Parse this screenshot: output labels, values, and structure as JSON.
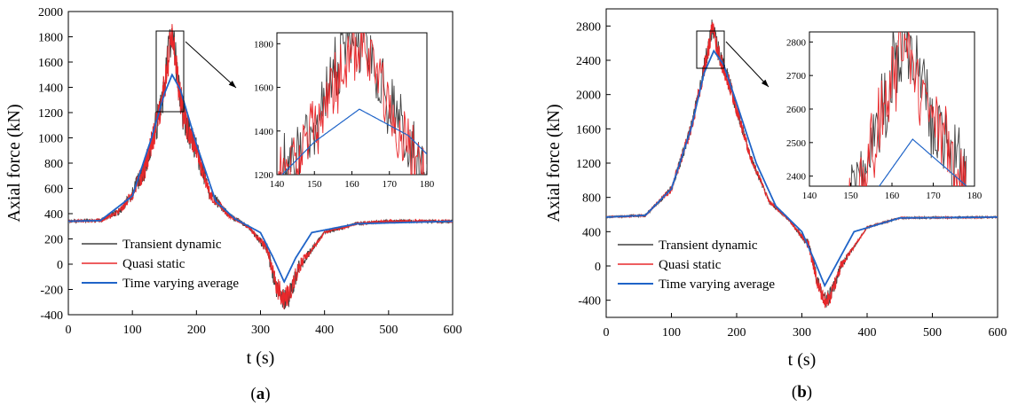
{
  "chart_data": [
    {
      "type": "line",
      "panel_label": "a",
      "caption_prefix": "(",
      "caption_suffix": ")",
      "xlabel": "t (s)",
      "ylabel": "Axial force (kN)",
      "xlim": [
        0,
        600
      ],
      "ylim": [
        -400,
        2000
      ],
      "xticks": [
        0,
        100,
        200,
        300,
        400,
        500,
        600
      ],
      "yticks": [
        -400,
        -200,
        0,
        200,
        400,
        600,
        800,
        1000,
        1200,
        1400,
        1600,
        1800,
        2000
      ],
      "baseline": 340,
      "peak_t": 160,
      "peak_width": 40,
      "peak_avg": 1500,
      "valley_t": 337,
      "valley_width": 22,
      "valley_avg": -140,
      "noise_amp": 150,
      "valley_noise": 80,
      "colors": {
        "transient": "#404040",
        "quasi": "#e8282b",
        "average": "#1f64c8"
      },
      "series": [
        {
          "name": "Transient dynamic",
          "key": "transient",
          "color": "#404040",
          "points": [
            [
              0,
              340
            ],
            [
              50,
              345
            ],
            [
              80,
              420
            ],
            [
              100,
              560
            ],
            [
              120,
              760
            ],
            [
              140,
              1150
            ],
            [
              150,
              1400
            ],
            [
              158,
              1760
            ],
            [
              163,
              1800
            ],
            [
              170,
              1520
            ],
            [
              180,
              1150
            ],
            [
              200,
              900
            ],
            [
              220,
              560
            ],
            [
              250,
              390
            ],
            [
              280,
              300
            ],
            [
              310,
              120
            ],
            [
              325,
              -200
            ],
            [
              337,
              -295
            ],
            [
              345,
              -250
            ],
            [
              360,
              -20
            ],
            [
              400,
              250
            ],
            [
              450,
              320
            ],
            [
              500,
              340
            ],
            [
              600,
              340
            ]
          ]
        },
        {
          "name": "Quasi static",
          "key": "quasi",
          "color": "#e8282b",
          "points": [
            [
              0,
              340
            ],
            [
              50,
              345
            ],
            [
              80,
              420
            ],
            [
              100,
              560
            ],
            [
              120,
              760
            ],
            [
              140,
              1150
            ],
            [
              150,
              1400
            ],
            [
              158,
              1700
            ],
            [
              163,
              1790
            ],
            [
              170,
              1500
            ],
            [
              180,
              1150
            ],
            [
              200,
              900
            ],
            [
              220,
              560
            ],
            [
              250,
              390
            ],
            [
              280,
              300
            ],
            [
              310,
              120
            ],
            [
              325,
              -180
            ],
            [
              337,
              -270
            ],
            [
              345,
              -230
            ],
            [
              360,
              -20
            ],
            [
              400,
              250
            ],
            [
              450,
              320
            ],
            [
              500,
              340
            ],
            [
              600,
              340
            ]
          ]
        },
        {
          "name": "Time varying average",
          "key": "average",
          "color": "#1f64c8",
          "points": [
            [
              0,
              340
            ],
            [
              50,
              345
            ],
            [
              100,
              540
            ],
            [
              130,
              1000
            ],
            [
              150,
              1350
            ],
            [
              162,
              1500
            ],
            [
              175,
              1380
            ],
            [
              200,
              950
            ],
            [
              230,
              500
            ],
            [
              260,
              360
            ],
            [
              300,
              250
            ],
            [
              320,
              50
            ],
            [
              337,
              -140
            ],
            [
              355,
              50
            ],
            [
              380,
              250
            ],
            [
              450,
              320
            ],
            [
              600,
              340
            ]
          ]
        }
      ],
      "inset": {
        "xlim": [
          140,
          180
        ],
        "ylim": [
          1200,
          1850
        ],
        "xticks": [
          140,
          150,
          160,
          170,
          180
        ],
        "yticks": [
          1200,
          1400,
          1600,
          1800
        ],
        "zoom_xlim": [
          140,
          180
        ],
        "zoom_ylim": [
          1200,
          1850
        ]
      }
    },
    {
      "type": "line",
      "panel_label": "b",
      "caption_prefix": "(",
      "caption_suffix": ")",
      "xlabel": "t (s)",
      "ylabel": "Axial force (kN)",
      "xlim": [
        0,
        600
      ],
      "ylim": [
        -600,
        3000
      ],
      "xticks": [
        0,
        100,
        200,
        300,
        400,
        500,
        600
      ],
      "yticks": [
        -400,
        0,
        400,
        800,
        1200,
        1600,
        2000,
        2400,
        2800
      ],
      "baseline": 570,
      "peak_t": 165,
      "peak_width": 42,
      "peak_avg": 2510,
      "valley_t": 335,
      "valley_width": 22,
      "valley_avg": -230,
      "noise_amp": 120,
      "valley_noise": 90,
      "colors": {
        "transient": "#404040",
        "quasi": "#e8282b",
        "average": "#1f64c8"
      },
      "series": [
        {
          "name": "Transient dynamic",
          "key": "transient",
          "color": "#404040",
          "points": [
            [
              0,
              570
            ],
            [
              60,
              590
            ],
            [
              100,
              900
            ],
            [
              130,
              1600
            ],
            [
              150,
              2300
            ],
            [
              158,
              2600
            ],
            [
              163,
              2820
            ],
            [
              170,
              2550
            ],
            [
              190,
              2100
            ],
            [
              220,
              1300
            ],
            [
              250,
              750
            ],
            [
              280,
              540
            ],
            [
              310,
              250
            ],
            [
              325,
              -200
            ],
            [
              337,
              -400
            ],
            [
              345,
              -320
            ],
            [
              360,
              0
            ],
            [
              400,
              450
            ],
            [
              450,
              560
            ],
            [
              600,
              570
            ]
          ]
        },
        {
          "name": "Quasi static",
          "key": "quasi",
          "color": "#e8282b",
          "points": [
            [
              0,
              570
            ],
            [
              60,
              590
            ],
            [
              100,
              900
            ],
            [
              130,
              1600
            ],
            [
              150,
              2300
            ],
            [
              158,
              2580
            ],
            [
              163,
              2800
            ],
            [
              170,
              2530
            ],
            [
              190,
              2100
            ],
            [
              220,
              1300
            ],
            [
              250,
              750
            ],
            [
              280,
              540
            ],
            [
              310,
              250
            ],
            [
              325,
              -220
            ],
            [
              337,
              -420
            ],
            [
              345,
              -330
            ],
            [
              360,
              0
            ],
            [
              400,
              450
            ],
            [
              450,
              560
            ],
            [
              600,
              570
            ]
          ]
        },
        {
          "name": "Time varying average",
          "key": "average",
          "color": "#1f64c8",
          "points": [
            [
              0,
              570
            ],
            [
              60,
              590
            ],
            [
              100,
              900
            ],
            [
              130,
              1600
            ],
            [
              150,
              2250
            ],
            [
              165,
              2510
            ],
            [
              180,
              2350
            ],
            [
              200,
              1900
            ],
            [
              230,
              1200
            ],
            [
              260,
              700
            ],
            [
              300,
              400
            ],
            [
              320,
              50
            ],
            [
              335,
              -230
            ],
            [
              355,
              50
            ],
            [
              380,
              400
            ],
            [
              450,
              560
            ],
            [
              600,
              570
            ]
          ]
        }
      ],
      "inset": {
        "xlim": [
          140,
          180
        ],
        "ylim": [
          2370,
          2830
        ],
        "xticks": [
          140,
          150,
          160,
          170,
          180
        ],
        "yticks": [
          2400,
          2500,
          2600,
          2700,
          2800
        ],
        "zoom_xlim": [
          146,
          178
        ],
        "zoom_ylim": [
          2370,
          2830
        ]
      }
    }
  ]
}
